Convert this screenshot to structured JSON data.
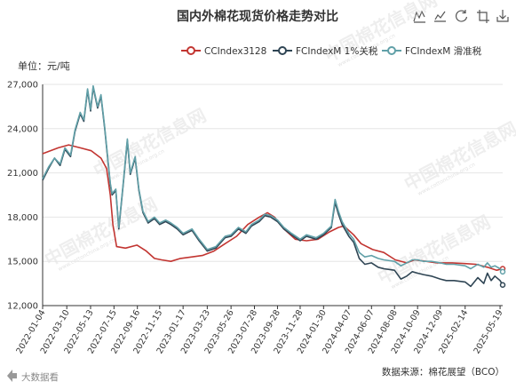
{
  "toolbar": {
    "icons": [
      "data-view-icon",
      "zoom-icon",
      "restore-icon",
      "zoom-reset-icon",
      "save-image-icon"
    ]
  },
  "footer": {
    "source_text": "数据来源：棉花展望（BCO）",
    "brand_text": "大数据看",
    "watermark_text": "中国棉花信息网",
    "watermark_sub": "www.cottonchina.org.cn"
  },
  "colors": {
    "series_1": "#c23531",
    "series_2": "#2f4554",
    "series_3": "#61a0a8",
    "axis": "#333333",
    "grid": "#e6e6e6"
  },
  "chart_data": {
    "type": "line",
    "title": "国内外棉花现货价格走势对比",
    "ylabel": "单位：元/吨",
    "ylim": [
      12000,
      27000
    ],
    "yticks": [
      12000,
      15000,
      18000,
      21000,
      24000,
      27000
    ],
    "ytick_labels": [
      "12,000",
      "15,000",
      "18,000",
      "21,000",
      "24,000",
      "27,000"
    ],
    "xlim": [
      "2022-01-04",
      "2025-05-26"
    ],
    "xticks": [
      "2022-01-04",
      "2022-03-10",
      "2022-05-13",
      "2022-07-15",
      "2022-09-16",
      "2022-11-15",
      "2023-01-17",
      "2023-03-23",
      "2023-05-26",
      "2023-07-28",
      "2023-09-28",
      "2023-11-28",
      "2024-01-30",
      "2024-04-07",
      "2024-06-07",
      "2024-08-08",
      "2024-10-09",
      "2024-12-09",
      "2025-02-14",
      "2025-05-19"
    ],
    "grid": "horizontal",
    "legend_position": "top-right",
    "series": [
      {
        "name": "CCIndex3128",
        "points": [
          [
            "2022-01-04",
            22300
          ],
          [
            "2022-02-15",
            22700
          ],
          [
            "2022-03-15",
            22900
          ],
          [
            "2022-04-15",
            22700
          ],
          [
            "2022-05-15",
            22500
          ],
          [
            "2022-06-10",
            22000
          ],
          [
            "2022-06-25",
            21300
          ],
          [
            "2022-07-05",
            19500
          ],
          [
            "2022-07-12",
            17500
          ],
          [
            "2022-07-22",
            16000
          ],
          [
            "2022-08-15",
            15900
          ],
          [
            "2022-09-15",
            16100
          ],
          [
            "2022-10-10",
            15700
          ],
          [
            "2022-11-01",
            15200
          ],
          [
            "2022-11-20",
            15100
          ],
          [
            "2022-12-15",
            15000
          ],
          [
            "2023-01-10",
            15200
          ],
          [
            "2023-02-10",
            15300
          ],
          [
            "2023-03-10",
            15400
          ],
          [
            "2023-04-10",
            15700
          ],
          [
            "2023-05-10",
            16200
          ],
          [
            "2023-06-10",
            16700
          ],
          [
            "2023-07-10",
            17500
          ],
          [
            "2023-08-10",
            18000
          ],
          [
            "2023-09-01",
            18300
          ],
          [
            "2023-09-20",
            18000
          ],
          [
            "2023-10-15",
            17200
          ],
          [
            "2023-11-15",
            16500
          ],
          [
            "2023-12-15",
            16400
          ],
          [
            "2024-01-15",
            16500
          ],
          [
            "2024-02-15",
            17000
          ],
          [
            "2024-03-10",
            17300
          ],
          [
            "2024-03-25",
            17400
          ],
          [
            "2024-04-20",
            16800
          ],
          [
            "2024-05-10",
            16200
          ],
          [
            "2024-06-10",
            15800
          ],
          [
            "2024-07-10",
            15600
          ],
          [
            "2024-08-10",
            15100
          ],
          [
            "2024-09-10",
            14900
          ],
          [
            "2024-10-01",
            15100
          ],
          [
            "2024-11-01",
            15000
          ],
          [
            "2024-12-01",
            14900
          ],
          [
            "2025-01-10",
            14900
          ],
          [
            "2025-02-14",
            14850
          ],
          [
            "2025-03-15",
            14800
          ],
          [
            "2025-04-15",
            14600
          ],
          [
            "2025-05-10",
            14400
          ],
          [
            "2025-05-26",
            14500
          ]
        ]
      },
      {
        "name": "FCIndexM 1%关税",
        "points": [
          [
            "2022-01-04",
            20500
          ],
          [
            "2022-01-20",
            21300
          ],
          [
            "2022-02-05",
            22000
          ],
          [
            "2022-02-20",
            21500
          ],
          [
            "2022-03-05",
            22600
          ],
          [
            "2022-03-20",
            22100
          ],
          [
            "2022-04-01",
            23800
          ],
          [
            "2022-04-15",
            25000
          ],
          [
            "2022-04-25",
            24500
          ],
          [
            "2022-05-05",
            26600
          ],
          [
            "2022-05-13",
            25200
          ],
          [
            "2022-05-20",
            26800
          ],
          [
            "2022-06-01",
            25400
          ],
          [
            "2022-06-10",
            26200
          ],
          [
            "2022-06-20",
            24000
          ],
          [
            "2022-06-28",
            22000
          ],
          [
            "2022-07-05",
            20200
          ],
          [
            "2022-07-10",
            19500
          ],
          [
            "2022-07-20",
            19800
          ],
          [
            "2022-07-28",
            17200
          ],
          [
            "2022-08-10",
            20500
          ],
          [
            "2022-08-20",
            23200
          ],
          [
            "2022-08-28",
            20900
          ],
          [
            "2022-09-10",
            22000
          ],
          [
            "2022-09-20",
            19800
          ],
          [
            "2022-10-01",
            18300
          ],
          [
            "2022-10-15",
            17600
          ],
          [
            "2022-11-01",
            17900
          ],
          [
            "2022-11-15",
            17500
          ],
          [
            "2022-12-01",
            17700
          ],
          [
            "2022-12-15",
            17500
          ],
          [
            "2023-01-01",
            17200
          ],
          [
            "2023-01-17",
            16800
          ],
          [
            "2023-02-10",
            17100
          ],
          [
            "2023-03-01",
            16400
          ],
          [
            "2023-03-23",
            15700
          ],
          [
            "2023-04-15",
            15900
          ],
          [
            "2023-05-10",
            16600
          ],
          [
            "2023-05-26",
            16700
          ],
          [
            "2023-06-15",
            17200
          ],
          [
            "2023-07-05",
            16900
          ],
          [
            "2023-07-20",
            17400
          ],
          [
            "2023-08-10",
            17700
          ],
          [
            "2023-08-25",
            18100
          ],
          [
            "2023-09-10",
            18000
          ],
          [
            "2023-09-28",
            17700
          ],
          [
            "2023-10-15",
            17200
          ],
          [
            "2023-11-05",
            16800
          ],
          [
            "2023-11-28",
            16400
          ],
          [
            "2023-12-15",
            16700
          ],
          [
            "2024-01-10",
            16500
          ],
          [
            "2024-01-30",
            16800
          ],
          [
            "2024-02-20",
            17300
          ],
          [
            "2024-03-01",
            19000
          ],
          [
            "2024-03-10",
            18200
          ],
          [
            "2024-03-20",
            17500
          ],
          [
            "2024-04-07",
            16700
          ],
          [
            "2024-04-20",
            16300
          ],
          [
            "2024-05-05",
            15200
          ],
          [
            "2024-05-20",
            14800
          ],
          [
            "2024-06-07",
            14900
          ],
          [
            "2024-06-25",
            14600
          ],
          [
            "2024-07-10",
            14500
          ],
          [
            "2024-08-08",
            14400
          ],
          [
            "2024-08-25",
            13800
          ],
          [
            "2024-09-10",
            14000
          ],
          [
            "2024-09-25",
            14300
          ],
          [
            "2024-10-09",
            14200
          ],
          [
            "2024-10-25",
            14100
          ],
          [
            "2024-11-15",
            14000
          ],
          [
            "2024-12-09",
            13800
          ],
          [
            "2024-12-25",
            13700
          ],
          [
            "2025-01-15",
            13700
          ],
          [
            "2025-02-14",
            13600
          ],
          [
            "2025-03-01",
            13300
          ],
          [
            "2025-03-20",
            13900
          ],
          [
            "2025-04-05",
            13500
          ],
          [
            "2025-04-15",
            14200
          ],
          [
            "2025-04-25",
            13700
          ],
          [
            "2025-05-05",
            14000
          ],
          [
            "2025-05-19",
            13700
          ],
          [
            "2025-05-26",
            13400
          ]
        ]
      },
      {
        "name": "FCIndexM 滑准税",
        "points": [
          [
            "2022-01-04",
            20600
          ],
          [
            "2022-01-20",
            21400
          ],
          [
            "2022-02-05",
            22000
          ],
          [
            "2022-02-20",
            21600
          ],
          [
            "2022-03-05",
            22700
          ],
          [
            "2022-03-20",
            22200
          ],
          [
            "2022-04-01",
            23900
          ],
          [
            "2022-04-15",
            25100
          ],
          [
            "2022-04-25",
            24600
          ],
          [
            "2022-05-05",
            26700
          ],
          [
            "2022-05-13",
            25300
          ],
          [
            "2022-05-20",
            26900
          ],
          [
            "2022-06-01",
            25500
          ],
          [
            "2022-06-10",
            26300
          ],
          [
            "2022-06-20",
            24100
          ],
          [
            "2022-06-28",
            22100
          ],
          [
            "2022-07-05",
            20300
          ],
          [
            "2022-07-10",
            19600
          ],
          [
            "2022-07-20",
            19900
          ],
          [
            "2022-07-28",
            17300
          ],
          [
            "2022-08-10",
            20600
          ],
          [
            "2022-08-20",
            23300
          ],
          [
            "2022-08-28",
            21000
          ],
          [
            "2022-09-10",
            22100
          ],
          [
            "2022-09-20",
            19900
          ],
          [
            "2022-10-01",
            18400
          ],
          [
            "2022-10-15",
            17700
          ],
          [
            "2022-11-01",
            18000
          ],
          [
            "2022-11-15",
            17600
          ],
          [
            "2022-12-01",
            17800
          ],
          [
            "2022-12-15",
            17600
          ],
          [
            "2023-01-01",
            17300
          ],
          [
            "2023-01-17",
            16900
          ],
          [
            "2023-02-10",
            17200
          ],
          [
            "2023-03-01",
            16500
          ],
          [
            "2023-03-23",
            15800
          ],
          [
            "2023-04-15",
            16000
          ],
          [
            "2023-05-10",
            16700
          ],
          [
            "2023-05-26",
            16800
          ],
          [
            "2023-06-15",
            17300
          ],
          [
            "2023-07-05",
            17000
          ],
          [
            "2023-07-20",
            17500
          ],
          [
            "2023-08-10",
            17800
          ],
          [
            "2023-08-25",
            18200
          ],
          [
            "2023-09-10",
            18100
          ],
          [
            "2023-09-28",
            17800
          ],
          [
            "2023-10-15",
            17300
          ],
          [
            "2023-11-05",
            16900
          ],
          [
            "2023-11-28",
            16500
          ],
          [
            "2023-12-15",
            16800
          ],
          [
            "2024-01-10",
            16600
          ],
          [
            "2024-01-30",
            16900
          ],
          [
            "2024-02-20",
            17400
          ],
          [
            "2024-03-01",
            19200
          ],
          [
            "2024-03-10",
            18400
          ],
          [
            "2024-03-20",
            17700
          ],
          [
            "2024-04-07",
            16900
          ],
          [
            "2024-04-20",
            16500
          ],
          [
            "2024-05-05",
            15600
          ],
          [
            "2024-05-20",
            15300
          ],
          [
            "2024-06-07",
            15400
          ],
          [
            "2024-06-25",
            15200
          ],
          [
            "2024-07-10",
            15100
          ],
          [
            "2024-08-08",
            15000
          ],
          [
            "2024-08-25",
            14700
          ],
          [
            "2024-09-10",
            14900
          ],
          [
            "2024-09-25",
            15100
          ],
          [
            "2024-10-09",
            15100
          ],
          [
            "2024-10-25",
            15000
          ],
          [
            "2024-11-15",
            15000
          ],
          [
            "2024-12-09",
            14900
          ],
          [
            "2024-12-25",
            14800
          ],
          [
            "2025-01-15",
            14800
          ],
          [
            "2025-02-14",
            14700
          ],
          [
            "2025-03-01",
            14500
          ],
          [
            "2025-03-20",
            14800
          ],
          [
            "2025-04-05",
            14600
          ],
          [
            "2025-04-15",
            14900
          ],
          [
            "2025-04-25",
            14600
          ],
          [
            "2025-05-05",
            14700
          ],
          [
            "2025-05-19",
            14500
          ],
          [
            "2025-05-26",
            14300
          ]
        ]
      }
    ]
  }
}
